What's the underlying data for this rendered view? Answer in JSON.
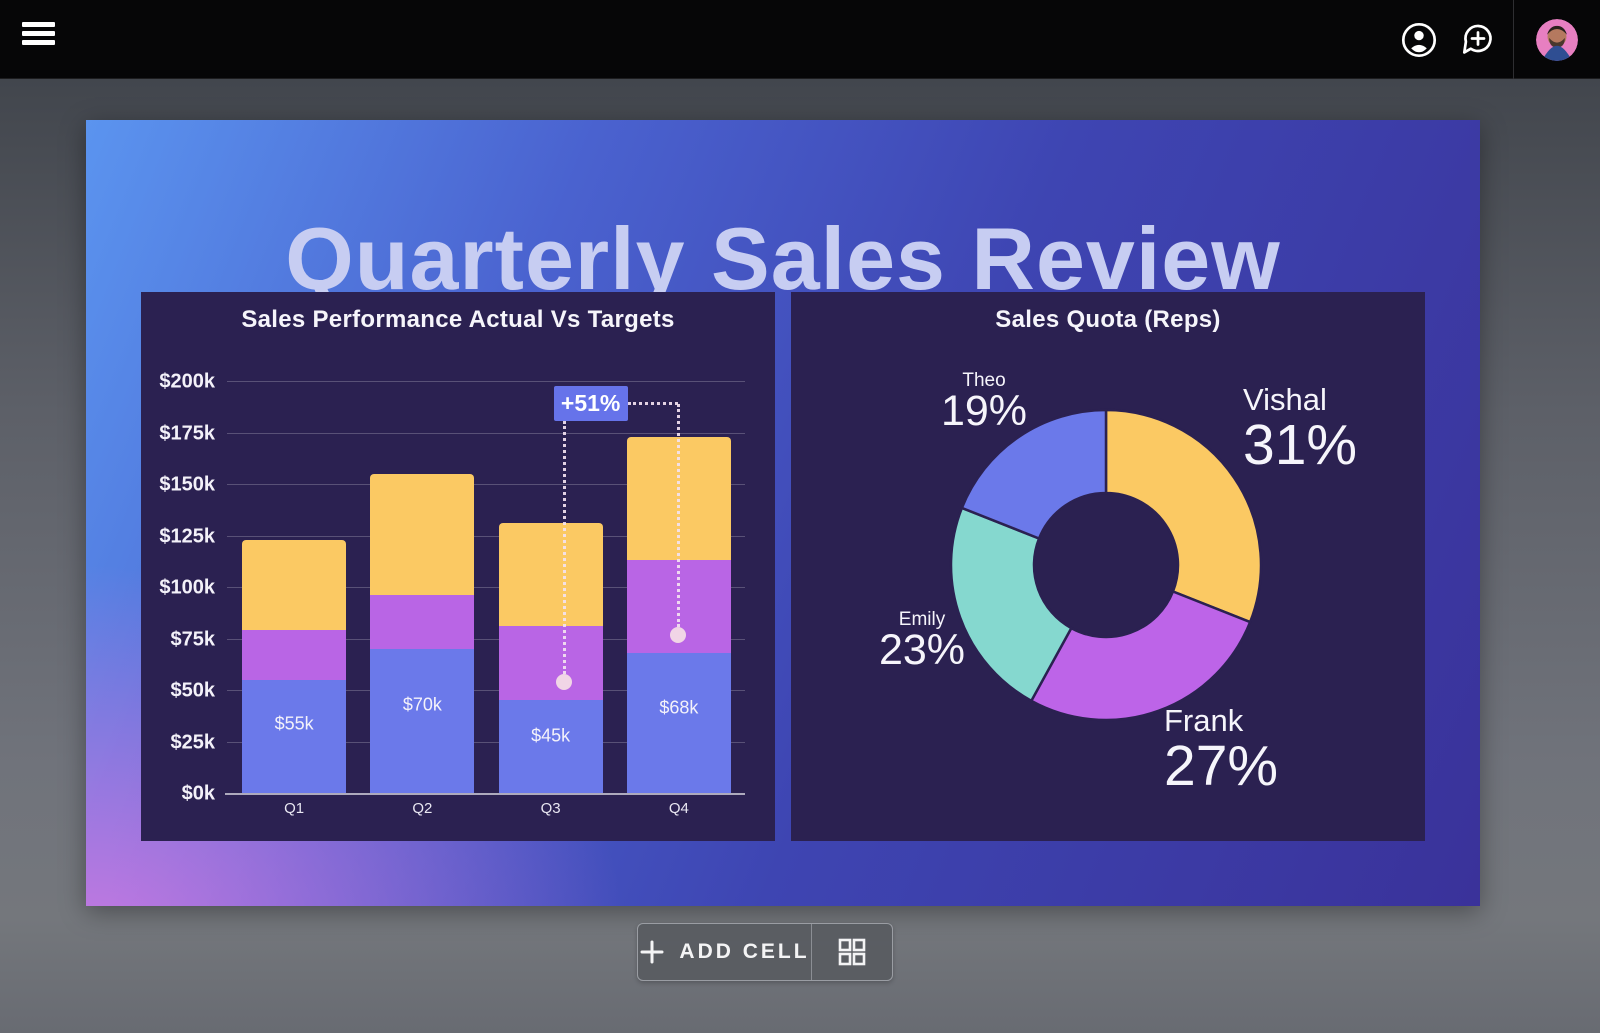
{
  "topbar": {
    "icons": {
      "menu": "hamburger-menu-icon",
      "account": "user-circle-icon",
      "comment": "add-comment-icon",
      "avatar": "user-avatar-photo"
    }
  },
  "slide": {
    "title": "Quarterly Sales Review"
  },
  "chart_data": [
    {
      "type": "bar",
      "stacked": true,
      "title": "Sales Performance Actual Vs Targets",
      "categories": [
        "Q1",
        "Q2",
        "Q3",
        "Q4"
      ],
      "series": [
        {
          "name": "blue-bottom-segment",
          "color": "#6b79ea",
          "values": [
            55,
            70,
            45,
            68
          ]
        },
        {
          "name": "purple-middle-segment",
          "color": "#b965e5",
          "values": [
            24,
            26,
            36,
            45
          ]
        },
        {
          "name": "yellow-top-segment",
          "color": "#fbc963",
          "values": [
            44,
            59,
            50,
            60
          ]
        }
      ],
      "bar_totals": [
        123,
        155,
        131,
        173
      ],
      "bar_labels": [
        "$55k",
        "$70k",
        "$45k",
        "$68k"
      ],
      "y_ticks": [
        "$200k",
        "$175k",
        "$150k",
        "$125k",
        "$100k",
        "$75k",
        "$50k",
        "$25k",
        "$0k"
      ],
      "y_tick_values": [
        200,
        175,
        150,
        125,
        100,
        75,
        50,
        25,
        0
      ],
      "ylim": [
        0,
        200
      ],
      "grid": true,
      "annotation": {
        "text": "+51%",
        "badge_color": "#6673ea",
        "from_category": "Q3",
        "to_category": "Q4"
      }
    },
    {
      "type": "pie",
      "donut": true,
      "title": "Sales Quota (Reps)",
      "start_angle_deg": 0,
      "direction": "clockwise",
      "slices": [
        {
          "name": "Vishal",
          "value": 31,
          "label": "31%",
          "color": "#fbc963"
        },
        {
          "name": "Frank",
          "value": 27,
          "label": "27%",
          "color": "#bd64e8"
        },
        {
          "name": "Emily",
          "value": 23,
          "label": "23%",
          "color": "#85d8cf"
        },
        {
          "name": "Theo",
          "value": 19,
          "label": "19%",
          "color": "#6b79ea"
        }
      ]
    }
  ],
  "footer": {
    "add_cell_label": "ADD CELL",
    "add_icon": "plus-icon",
    "layout_icon": "grid-layout-icon"
  },
  "colors": {
    "panel_bg": "#2b2151",
    "slide_gradient_top_left": "#5b94ef",
    "slide_gradient_right": "#3a329a",
    "slide_gradient_bottom_left": "#d979e2",
    "annotation_badge": "#6673ea"
  }
}
